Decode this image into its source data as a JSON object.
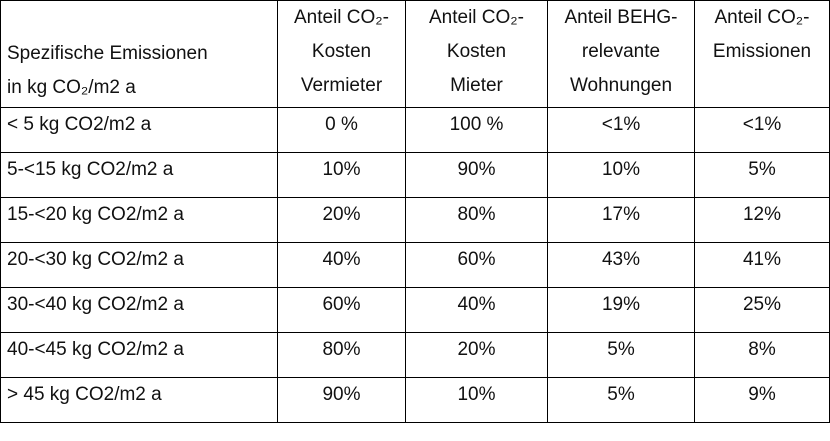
{
  "table": {
    "header": [
      [
        "Spezifische Emissionen",
        "in kg CO₂/m2 a"
      ],
      [
        "Anteil CO₂-",
        "Kosten",
        "Vermieter"
      ],
      [
        "Anteil CO₂-",
        "Kosten",
        "Mieter"
      ],
      [
        "Anteil BEHG-",
        "relevante",
        "Wohnungen"
      ],
      [
        "Anteil CO₂-",
        "Emissionen"
      ]
    ],
    "rows": [
      [
        "< 5 kg CO2/m2 a",
        "0 %",
        "100 %",
        "<1%",
        "<1%"
      ],
      [
        "5-<15 kg CO2/m2 a",
        "10%",
        "90%",
        "10%",
        "5%"
      ],
      [
        "15-<20 kg CO2/m2 a",
        "20%",
        "80%",
        "17%",
        "12%"
      ],
      [
        "20-<30 kg CO2/m2 a",
        "40%",
        "60%",
        "43%",
        "41%"
      ],
      [
        "30-<40 kg CO2/m2 a",
        "60%",
        "40%",
        "19%",
        "25%"
      ],
      [
        "40-<45 kg CO2/m2 a",
        "80%",
        "20%",
        "5%",
        "8%"
      ],
      [
        "> 45 kg CO2/m2 a",
        "90%",
        "10%",
        "5%",
        "9%"
      ]
    ]
  }
}
